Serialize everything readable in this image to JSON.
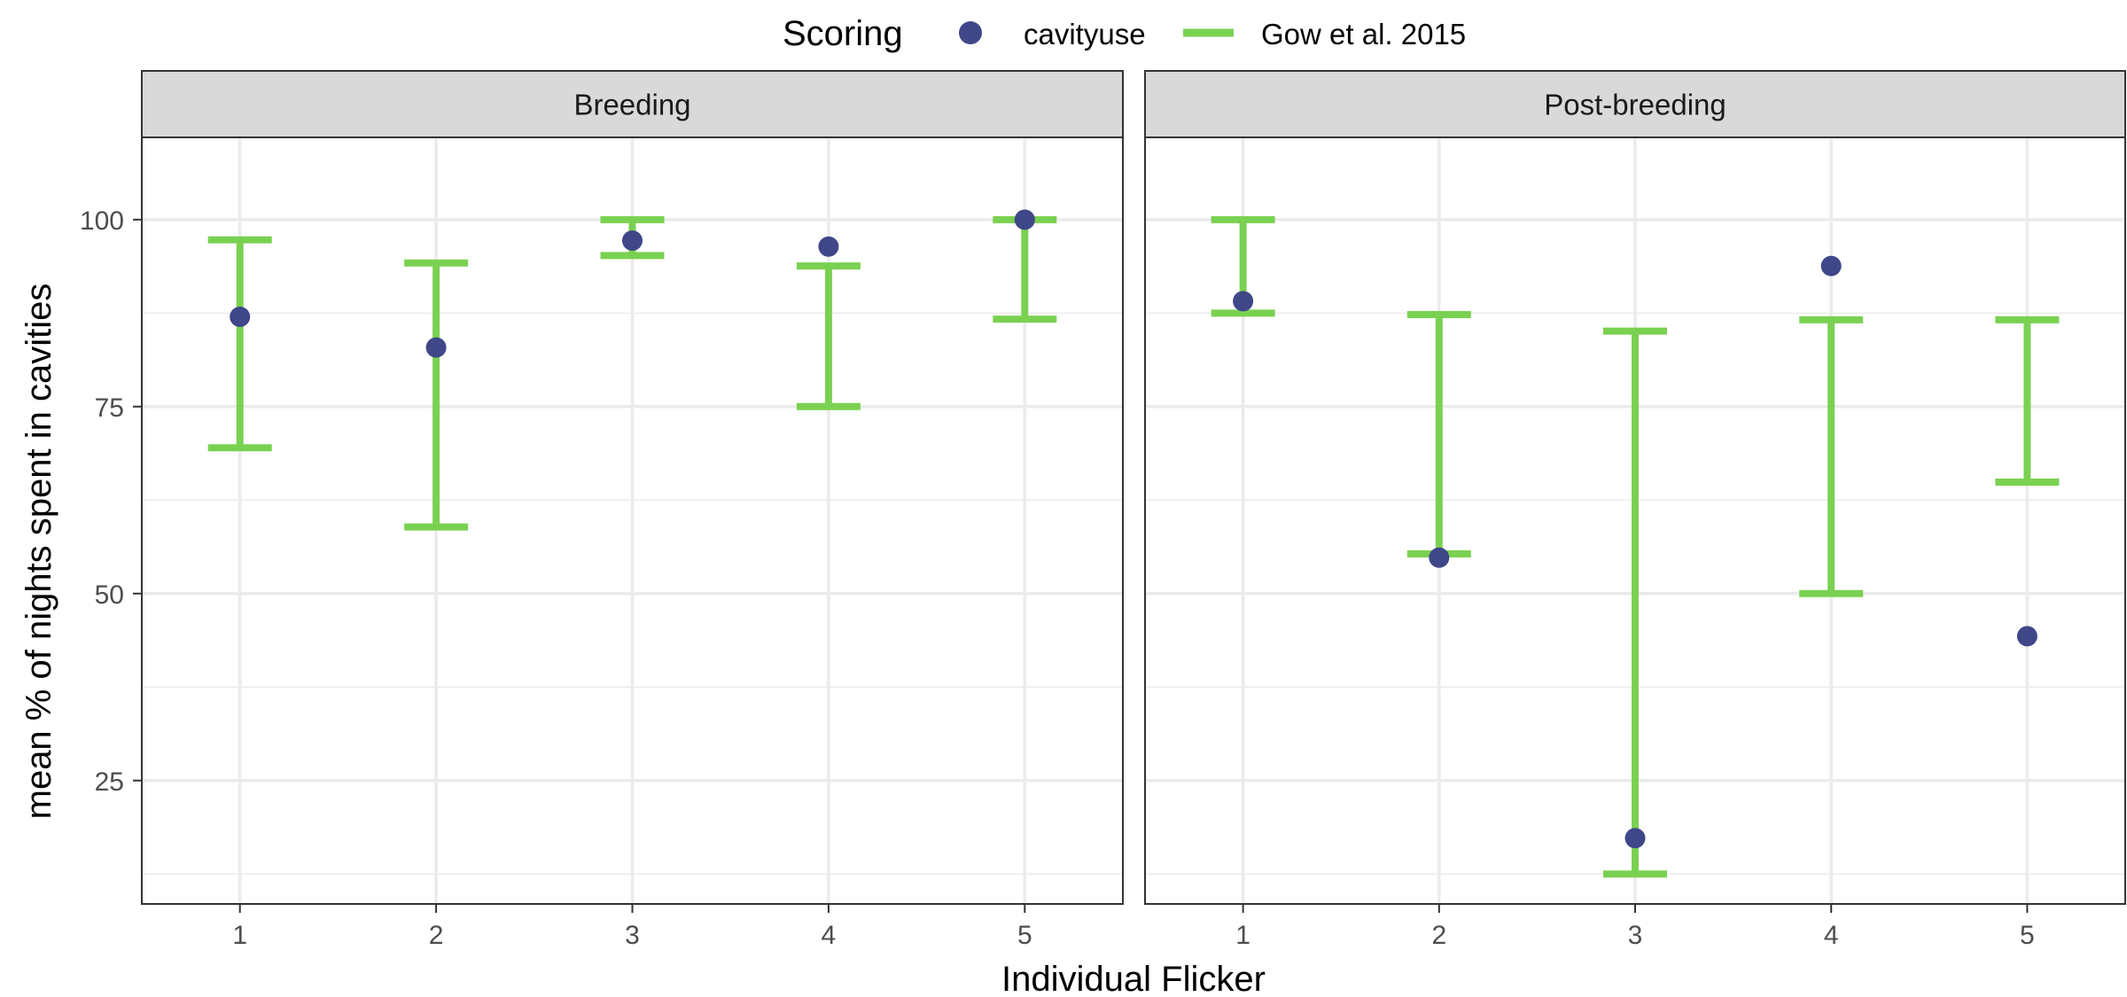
{
  "chart_data": {
    "type": "scatter",
    "legend": {
      "title": "Scoring",
      "placement": "top",
      "entries": [
        {
          "label": "cavityuse",
          "shape": "point",
          "color": "#3F4788"
        },
        {
          "label": "Gow et al. 2015",
          "shape": "errorbar",
          "color": "#7AD151"
        }
      ]
    },
    "xlabel": "Individual Flicker",
    "ylabel": "mean % of nights spent in cavities",
    "x_ticks": [
      "1",
      "2",
      "3",
      "4",
      "5"
    ],
    "y_ticks": [
      25,
      50,
      75,
      100
    ],
    "ylim": [
      8.5,
      111
    ],
    "grid": true,
    "panels": [
      {
        "label": "Breeding",
        "cavityuse": [
          87.0,
          82.9,
          97.2,
          96.4,
          100.0
        ],
        "gow_errorbars": [
          {
            "low": 69.5,
            "high": 97.3
          },
          {
            "low": 58.9,
            "high": 94.2
          },
          {
            "low": 95.2,
            "high": 100.0
          },
          {
            "low": 75.0,
            "high": 93.8
          },
          {
            "low": 86.7,
            "high": 100.0
          }
        ]
      },
      {
        "label": "Post-breeding",
        "cavityuse": [
          89.1,
          54.8,
          17.3,
          93.8,
          44.3
        ],
        "gow_errorbars": [
          {
            "low": 87.5,
            "high": 100.0
          },
          {
            "low": 55.3,
            "high": 87.3
          },
          {
            "low": 12.5,
            "high": 85.1
          },
          {
            "low": 50.0,
            "high": 86.6
          },
          {
            "low": 64.9,
            "high": 86.6
          }
        ]
      }
    ]
  }
}
